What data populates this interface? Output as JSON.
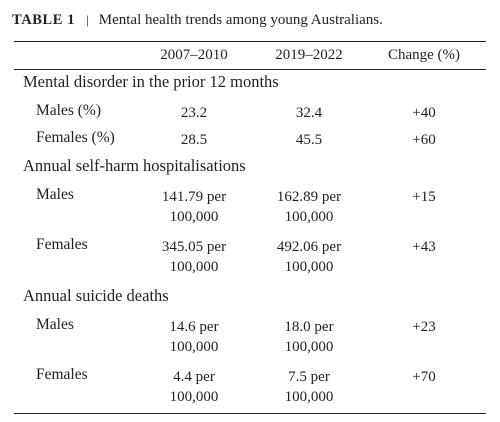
{
  "caption": {
    "label": "TABLE 1",
    "separator": "|",
    "title": "Mental health trends among young Australians."
  },
  "columns": [
    "2007–2010",
    "2019–2022",
    "Change (%)"
  ],
  "sections": [
    {
      "title": "Mental disorder in the prior 12 months",
      "rows": [
        {
          "label": "Males (%)",
          "v1": [
            "23.2"
          ],
          "v2": [
            "32.4"
          ],
          "change": "+40"
        },
        {
          "label": "Females (%)",
          "v1": [
            "28.5"
          ],
          "v2": [
            "45.5"
          ],
          "change": "+60"
        }
      ]
    },
    {
      "title": "Annual self-harm hospitalisations",
      "rows": [
        {
          "label": "Males",
          "v1": [
            "141.79 per",
            "100,000"
          ],
          "v2": [
            "162.89 per",
            "100,000"
          ],
          "change": "+15"
        },
        {
          "label": "Females",
          "v1": [
            "345.05 per",
            "100,000"
          ],
          "v2": [
            "492.06 per",
            "100,000"
          ],
          "change": "+43"
        }
      ]
    },
    {
      "title": "Annual suicide deaths",
      "rows": [
        {
          "label": "Males",
          "v1": [
            "14.6 per",
            "100,000"
          ],
          "v2": [
            "18.0 per",
            "100,000"
          ],
          "change": "+23"
        },
        {
          "label": "Females",
          "v1": [
            "4.4 per",
            "100,000"
          ],
          "v2": [
            "7.5 per",
            "100,000"
          ],
          "change": "+70"
        }
      ]
    }
  ]
}
